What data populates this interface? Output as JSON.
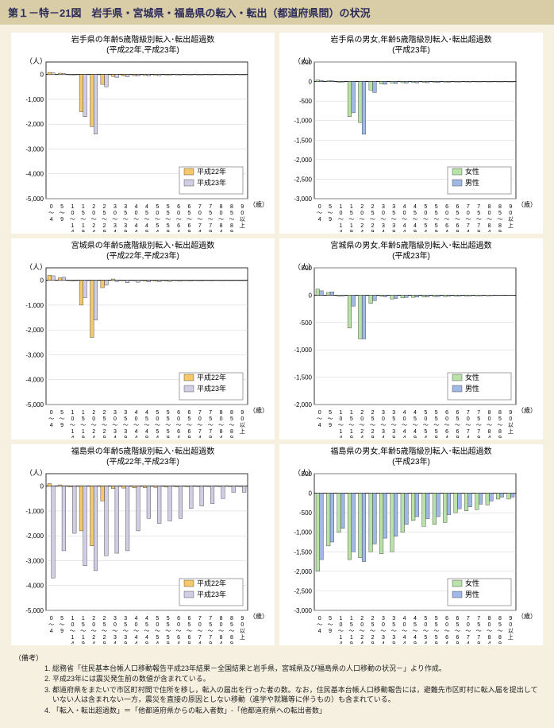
{
  "header_title": "第１－特－21図　岩手県・宮城県・福島県の転入・転出（都道府県間）の状況",
  "axis": {
    "y_unit_label": "（人）",
    "x_unit_label": "（歳）",
    "age_labels": [
      "0〜4",
      "5〜9",
      "10〜14",
      "15〜19",
      "20〜24",
      "25〜29",
      "30〜34",
      "35〜39",
      "40〜44",
      "45〜49",
      "50〜54",
      "55〜59",
      "60〜64",
      "65〜69",
      "70〜74",
      "75〜79",
      "80〜84",
      "85〜89",
      "90以上"
    ]
  },
  "style": {
    "bg": "#ffffff",
    "grid": "#d0d0d0",
    "axis_color": "#000000",
    "tick_font": 8,
    "title_font": 10,
    "legend_font": 9,
    "colors": {
      "h22": "#f5c96b",
      "h23": "#d0cde4",
      "female": "#b8e2a6",
      "male": "#9fb8e6"
    },
    "bar_stroke": "#333333"
  },
  "legend_labels": {
    "h22": "平成22年",
    "h23": "平成23年",
    "female": "女性",
    "male": "男性"
  },
  "charts": [
    {
      "id": "iwate_year",
      "title_l1": "岩手県の年齢5歳階級別転入･転出超過数",
      "title_l2": "(平成22年,平成23年)",
      "ylim": [
        -5000,
        500
      ],
      "ystep": 1000,
      "legend": [
        "h22",
        "h23"
      ],
      "series": {
        "h22": [
          80,
          50,
          -20,
          -1500,
          -2100,
          -400,
          -80,
          -60,
          -50,
          -40,
          -40,
          -30,
          -20,
          -20,
          -20,
          -15,
          -10,
          -5,
          -5
        ],
        "h23": [
          60,
          40,
          -30,
          -1700,
          -2400,
          -500,
          -120,
          -90,
          -70,
          -60,
          -50,
          -40,
          -30,
          -25,
          -25,
          -20,
          -15,
          -10,
          -5
        ]
      }
    },
    {
      "id": "iwate_sex",
      "title_l1": "岩手県の男女,年齢5歳階級別転入･転出超過数",
      "title_l2": "(平成23年)",
      "ylim": [
        -3000,
        500
      ],
      "ystep": 500,
      "legend": [
        "female",
        "male"
      ],
      "series": {
        "female": [
          40,
          20,
          -20,
          -900,
          -1050,
          -220,
          -60,
          -40,
          -30,
          -25,
          -25,
          -20,
          -15,
          -12,
          -10,
          -10,
          -8,
          -5,
          -3
        ],
        "male": [
          30,
          20,
          -15,
          -800,
          -1350,
          -280,
          -70,
          -50,
          -40,
          -35,
          -30,
          -25,
          -18,
          -13,
          -12,
          -10,
          -8,
          -5,
          -3
        ]
      }
    },
    {
      "id": "miyagi_year",
      "title_l1": "宮城県の年齢5歳階級別転入･転出超過数",
      "title_l2": "(平成22年,平成23年)",
      "ylim": [
        -5000,
        500
      ],
      "ystep": 1000,
      "legend": [
        "h22",
        "h23"
      ],
      "series": {
        "h22": [
          200,
          100,
          -20,
          -1000,
          -2300,
          -300,
          50,
          0,
          -20,
          -30,
          -30,
          -30,
          -20,
          -20,
          -20,
          -15,
          -10,
          -5,
          -5
        ],
        "h23": [
          180,
          120,
          -30,
          -700,
          -1600,
          -200,
          -50,
          -100,
          -80,
          -70,
          -60,
          -50,
          -40,
          -35,
          -30,
          -25,
          -20,
          -10,
          -8
        ]
      }
    },
    {
      "id": "miyagi_sex",
      "title_l1": "宮城県の男女,年齢5歳階級別転入･転出超過数",
      "title_l2": "(平成23年)",
      "ylim": [
        -2000,
        500
      ],
      "ystep": 500,
      "legend": [
        "female",
        "male"
      ],
      "series": {
        "female": [
          110,
          50,
          -20,
          -600,
          -800,
          -150,
          -20,
          -70,
          -50,
          -40,
          -35,
          -30,
          -25,
          -20,
          -18,
          -15,
          -12,
          -8,
          -4
        ],
        "male": [
          80,
          60,
          -15,
          -200,
          -800,
          -100,
          -30,
          -60,
          -40,
          -35,
          -30,
          -25,
          -20,
          -18,
          -15,
          -12,
          -10,
          -6,
          -3
        ]
      }
    },
    {
      "id": "fukushima_year",
      "title_l1": "福島県の年齢5歳階級別転入･転出超過数",
      "title_l2": "(平成22年,平成23年)",
      "ylim": [
        -5000,
        500
      ],
      "ystep": 1000,
      "legend": [
        "h22",
        "h23"
      ],
      "series": {
        "h22": [
          100,
          50,
          -30,
          -1800,
          -2400,
          -600,
          -100,
          -80,
          -70,
          -60,
          -50,
          -40,
          -30,
          -25,
          -20,
          -15,
          -10,
          -8,
          -5
        ],
        "h23": [
          -3700,
          -2600,
          -1900,
          -3200,
          -3400,
          -2800,
          -2700,
          -2600,
          -1800,
          -1300,
          -1500,
          -1400,
          -1300,
          -900,
          -800,
          -700,
          -500,
          -250,
          -250
        ]
      }
    },
    {
      "id": "fukushima_sex",
      "title_l1": "福島県の男女,年齢5歳階級別転入･転出超過数",
      "title_l2": "(平成23年)",
      "ylim": [
        -3000,
        500
      ],
      "ystep": 500,
      "legend": [
        "female",
        "male"
      ],
      "series": {
        "female": [
          -2000,
          -1350,
          -1000,
          -1700,
          -1650,
          -1500,
          -1550,
          -1500,
          -1000,
          -700,
          -850,
          -800,
          -750,
          -500,
          -450,
          -420,
          -300,
          -150,
          -150
        ],
        "male": [
          -1700,
          -1250,
          -900,
          -1500,
          -1750,
          -1300,
          -1150,
          -1100,
          -800,
          -600,
          -650,
          -600,
          -550,
          -400,
          -350,
          -280,
          -200,
          -100,
          -100
        ]
      }
    }
  ],
  "footnotes": {
    "head": "（備考）",
    "items": [
      "総務省「住民基本台帳人口移動報告平成23年結果－全国結果と岩手県，宮城県及び福島県の人口移動の状況－」より作成。",
      "平成23年には震災発生前の数値が含まれている。",
      "都道府県をまたいで市区町村間で住所を移し，転入の届出を行った者の数。なお，住民基本台帳人口移動報告には，避難先市区町村に転入届を提出していない人は含まれない一方，震災を直接の原因としない移動（進学や就職等に伴うもの）も含まれている。",
      "「転入・転出超過数」＝「他都道府県からの転入者数」-「他都道府県への転出者数」"
    ]
  }
}
